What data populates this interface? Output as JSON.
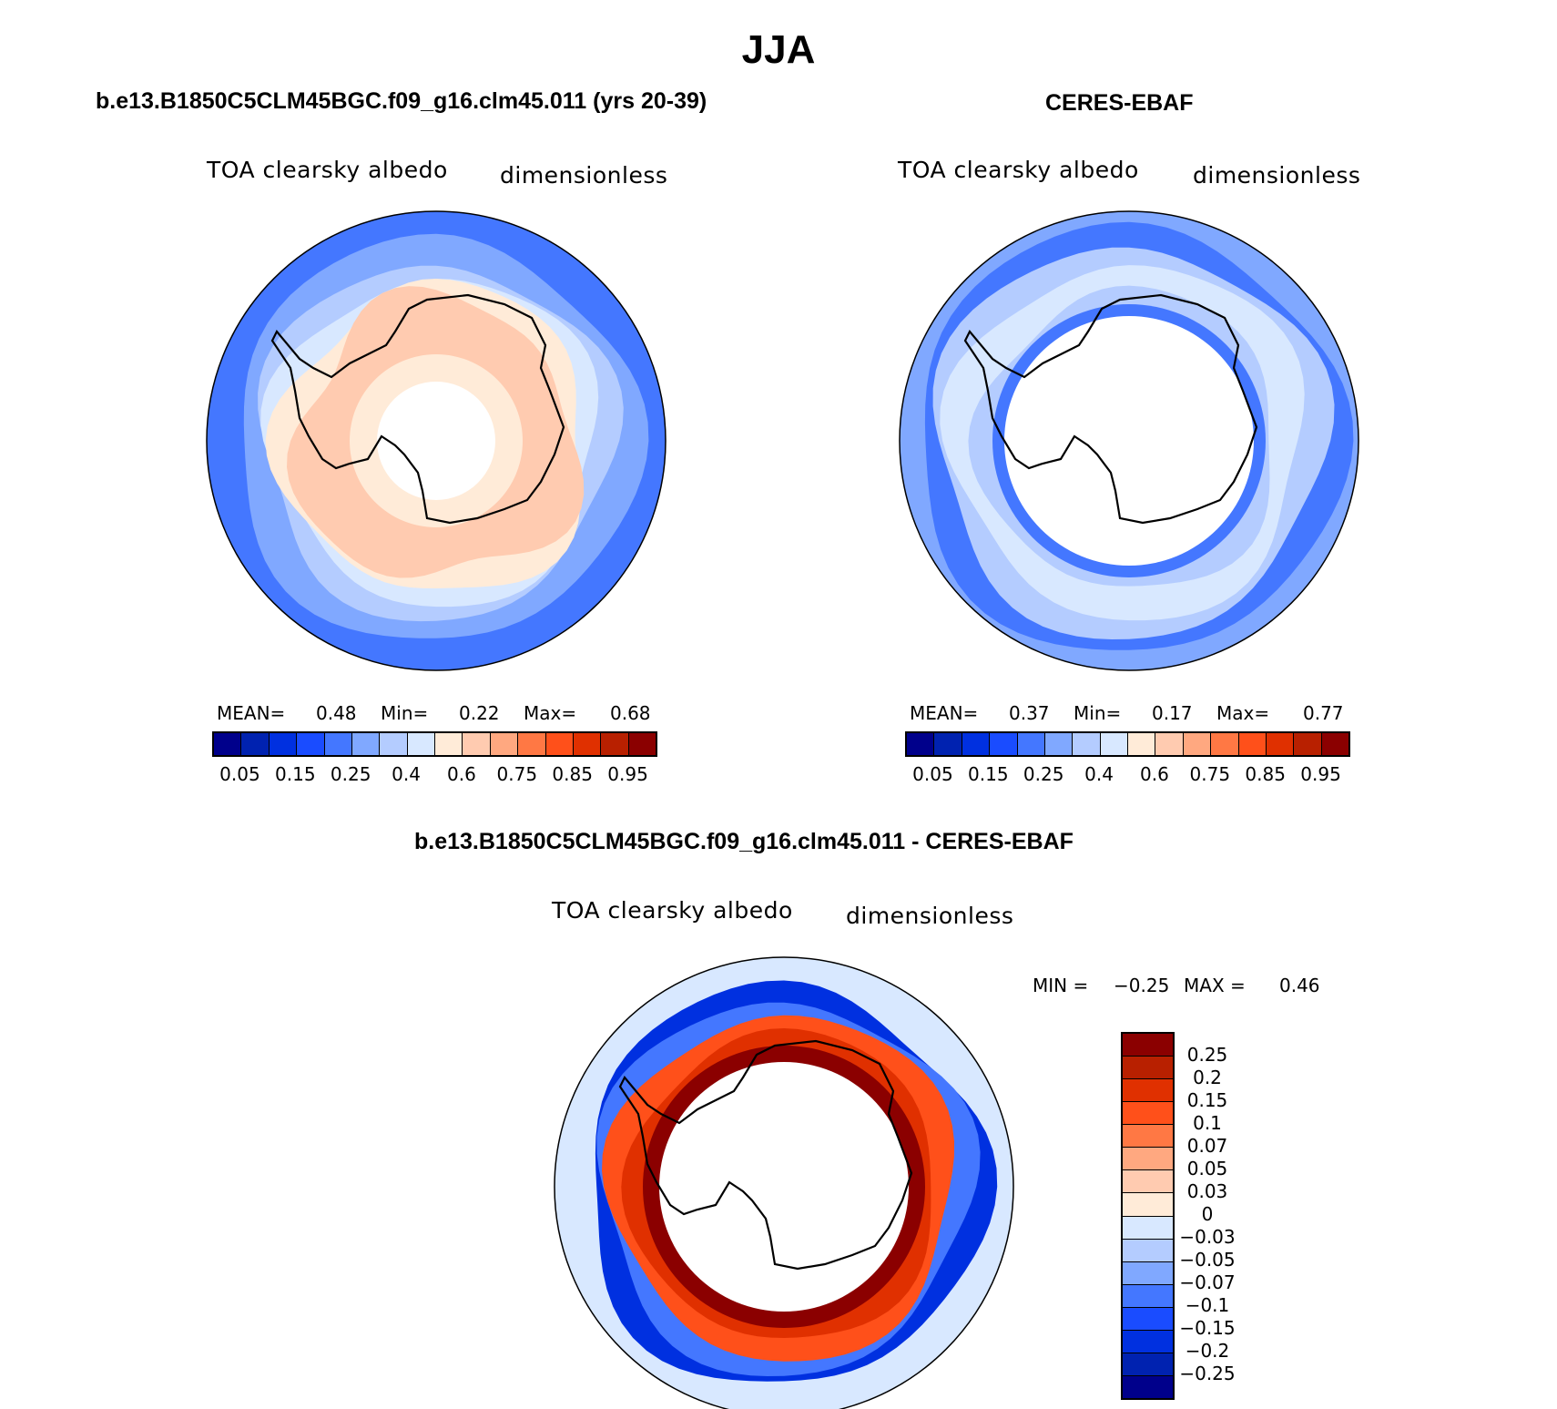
{
  "chart_data": [
    {
      "type": "heatmap",
      "title": "b.e13.B1850C5CLM45BGC.f09_g16.clm45.011 (yrs 20-39)",
      "variable": "TOA clearsky albedo",
      "units": "dimensionless",
      "stats": {
        "mean_label": "MEAN=",
        "mean": "0.48",
        "min_label": "Min=",
        "min": "0.22",
        "max_label": "Max=",
        "max": "0.68"
      },
      "colorbar_ticks": [
        "0.05",
        "0.15",
        "0.25",
        "0.4",
        "0.6",
        "0.75",
        "0.85",
        "0.95"
      ]
    },
    {
      "type": "heatmap",
      "title": "CERES-EBAF",
      "variable": "TOA clearsky albedo",
      "units": "dimensionless",
      "stats": {
        "mean_label": "MEAN=",
        "mean": "0.37",
        "min_label": "Min=",
        "min": "0.17",
        "max_label": "Max=",
        "max": "0.77"
      },
      "colorbar_ticks": [
        "0.05",
        "0.15",
        "0.25",
        "0.4",
        "0.6",
        "0.75",
        "0.85",
        "0.95"
      ]
    },
    {
      "type": "heatmap",
      "title": "b.e13.B1850C5CLM45BGC.f09_g16.clm45.011 - CERES-EBAF",
      "variable": "TOA clearsky albedo",
      "units": "dimensionless",
      "stats": {
        "min_label": "MIN =",
        "min": "−0.25",
        "max_label": "MAX =",
        "max": "0.46"
      },
      "colorbar_ticks": [
        "0.25",
        "0.2",
        "0.15",
        "0.1",
        "0.07",
        "0.05",
        "0.03",
        "0",
        "−0.03",
        "−0.05",
        "−0.07",
        "−0.1",
        "−0.15",
        "−0.2",
        "−0.25"
      ]
    }
  ],
  "page": {
    "title": "JJA"
  },
  "colors": [
    "#00008b",
    "#0022b0",
    "#0030e0",
    "#1a4cff",
    "#4477ff",
    "#80a8ff",
    "#b4ccff",
    "#d8e8ff",
    "#ffebd8",
    "#ffcbb0",
    "#ffa880",
    "#ff7844",
    "#ff501a",
    "#e03000",
    "#b82000",
    "#8b0000"
  ]
}
